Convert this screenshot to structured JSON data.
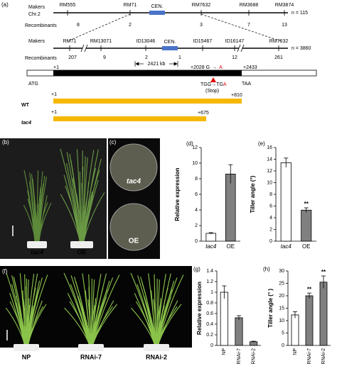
{
  "panel_labels": [
    "(a)",
    "(b)",
    "(c)",
    "(d)",
    "(e)",
    "(f)",
    "(g)",
    "(h)"
  ],
  "map1": {
    "row_label": "Makers",
    "chromosome": "Chr.2",
    "recombinants_label": "Recombinants",
    "markers": [
      "RM555",
      "RM71",
      "RM7632",
      "RM3688",
      "RM3874"
    ],
    "centromere": "CEN.",
    "recombinants": [
      "8",
      "2",
      "3",
      "7",
      "13"
    ],
    "n": "n = 115"
  },
  "map2": {
    "row_label": "Makers",
    "recombinants_label": "Recombinants",
    "markers": [
      "RM71",
      "RM13071",
      "ID13046",
      "ID15467",
      "ID16147",
      "RM7632"
    ],
    "centromere": "CEN.",
    "recombinants": [
      "207",
      "9",
      "2",
      "1",
      "12",
      "261"
    ],
    "interval": "2421 kb",
    "n": "n = 3860"
  },
  "gene": {
    "start": "+1",
    "mutation": "+2028 G",
    "mutation_base": "A",
    "end": "+2433",
    "start_codon": "ATG",
    "stop_old": "TGG",
    "stop_new": "TG",
    "stop_new_base": "A",
    "stop_note": "(Stop)",
    "stop_codon": "TAA"
  },
  "proteins": [
    {
      "name": "WT",
      "start": "+1",
      "end": "+810"
    },
    {
      "name": "tac4",
      "start": "+1",
      "end": "+675"
    }
  ],
  "photos": {
    "b": [
      "tac4",
      "OE"
    ],
    "c": [
      "tac4",
      "OE"
    ],
    "f": [
      "NP",
      "RNAi-7",
      "RNAi-2"
    ]
  },
  "chart_data": [
    {
      "type": "bar",
      "y_label": "Relative expression",
      "categories": [
        "tac4",
        "OE"
      ],
      "values": [
        1.0,
        8.6
      ],
      "errors": [
        0.1,
        1.2
      ],
      "colors": [
        "#ffffff",
        "#808080"
      ],
      "ylim": [
        0,
        12
      ],
      "yticks": [
        0,
        2,
        4,
        6,
        8,
        10,
        12
      ]
    },
    {
      "type": "bar",
      "y_label": "Tiller angle (°)",
      "categories": [
        "tac4",
        "OE"
      ],
      "values": [
        13.4,
        5.3
      ],
      "errors": [
        0.8,
        0.4
      ],
      "significance": [
        null,
        "**"
      ],
      "colors": [
        "#ffffff",
        "#808080"
      ],
      "ylim": [
        0,
        16
      ],
      "yticks": [
        0,
        2,
        4,
        6,
        8,
        10,
        12,
        14,
        16
      ]
    },
    {
      "type": "bar",
      "y_label": "Relative expression",
      "categories": [
        "NP",
        "RNAi-7",
        "RNAi-2"
      ],
      "values": [
        1.0,
        0.52,
        0.07
      ],
      "errors": [
        0.12,
        0.04,
        0.01
      ],
      "colors": [
        "#ffffff",
        "#808080",
        "#808080"
      ],
      "ylim": [
        0,
        1.4
      ],
      "yticks": [
        0,
        0.2,
        0.4,
        0.6,
        0.8,
        1,
        1.2,
        1.4
      ]
    },
    {
      "type": "bar",
      "y_label": "Tiller angle (° )",
      "categories": [
        "NP",
        "RNAi-7",
        "RNAi-2"
      ],
      "values": [
        12.3,
        20,
        25.5
      ],
      "errors": [
        1.3,
        1.1,
        2.5
      ],
      "significance": [
        null,
        "**",
        "**"
      ],
      "colors": [
        "#ffffff",
        "#808080",
        "#808080"
      ],
      "ylim": [
        0,
        30
      ],
      "yticks": [
        0,
        5,
        10,
        15,
        20,
        25,
        30
      ]
    }
  ]
}
